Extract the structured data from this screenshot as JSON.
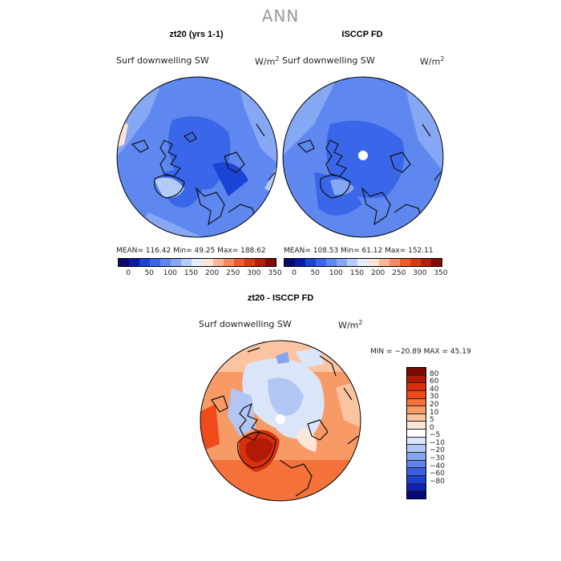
{
  "title": "ANN",
  "panels": [
    {
      "title": "zt20 (yrs 1-1)",
      "variable": "Surf downwelling SW",
      "unit_base": "W/m",
      "unit_exp": "2",
      "stats": "MEAN= 116.42   Min=  49.25   Max= 188.62"
    },
    {
      "title": "ISCCP FD",
      "variable": "Surf downwelling SW",
      "unit_base": "W/m",
      "unit_exp": "2",
      "stats": "MEAN= 108.53   Min=  61.12   Max= 152.11"
    }
  ],
  "abs_colorbar": {
    "colors": [
      "#08086e",
      "#0a1aa8",
      "#1a44d6",
      "#3a66ea",
      "#5e88f0",
      "#86a8f4",
      "#b4cbf7",
      "#e4ecfb",
      "#fde4d4",
      "#f9b797",
      "#f58a62",
      "#ef5c30",
      "#d83a14",
      "#b51f0a",
      "#800c04"
    ],
    "ticks": [
      "0",
      "50",
      "100",
      "150",
      "200",
      "250",
      "300",
      "350"
    ]
  },
  "diff": {
    "title": "zt20 - ISCCP FD",
    "variable": "Surf downwelling SW",
    "unit_base": "W/m",
    "unit_exp": "2",
    "stats": "MIN = −20.89  MAX =  45.19",
    "colors": [
      "#7a0a02",
      "#b01a06",
      "#d92f0c",
      "#f04a1a",
      "#f5713a",
      "#f89a66",
      "#fbc4a0",
      "#fde6d8",
      "#ffffff",
      "#dbe5fa",
      "#b2c6f4",
      "#86a5ee",
      "#5d82e8",
      "#3a5fe0",
      "#1d3ed4",
      "#0d22b5",
      "#040a7a"
    ],
    "labels": [
      "80",
      "60",
      "40",
      "30",
      "20",
      "10",
      "5",
      "0",
      "−5",
      "−10",
      "−20",
      "−30",
      "−40",
      "−60",
      "−80"
    ]
  }
}
